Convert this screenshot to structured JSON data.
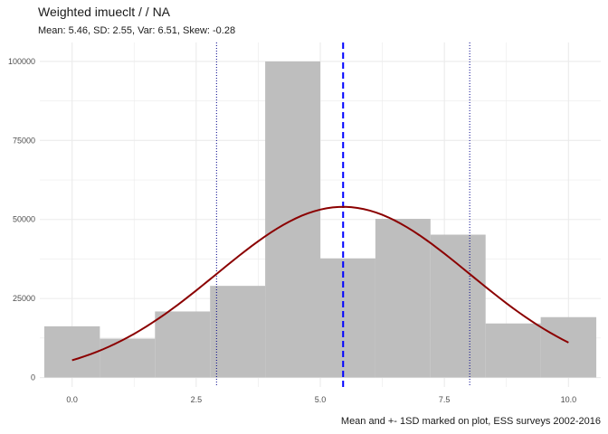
{
  "chart_data": {
    "type": "bar",
    "title": "Weighted  imueclt /  / NA",
    "subtitle": "Mean: 5.46, SD: 2.55, Var: 6.51, Skew: -0.28",
    "caption": "Mean and +- 1SD marked on plot, ESS surveys 2002-2016",
    "xlabel": "",
    "ylabel": "",
    "xlim": [
      -0.65,
      10.65
    ],
    "ylim": [
      -3000,
      106000
    ],
    "x_ticks": [
      0,
      2.5,
      5,
      7.5,
      10
    ],
    "x_tick_labels": [
      "0.0",
      "2.5",
      "5.0",
      "7.5",
      "10.0"
    ],
    "y_ticks": [
      0,
      25000,
      50000,
      75000,
      100000
    ],
    "y_tick_labels": [
      "0",
      "25000",
      "50000",
      "75000",
      "100000"
    ],
    "bins": [
      {
        "x0": -0.56,
        "x1": 0.56,
        "count": 16200
      },
      {
        "x0": 0.56,
        "x1": 1.67,
        "count": 12300
      },
      {
        "x0": 1.67,
        "x1": 2.78,
        "count": 20900
      },
      {
        "x0": 2.78,
        "x1": 3.89,
        "count": 29000
      },
      {
        "x0": 3.89,
        "x1": 5.0,
        "count": 100000
      },
      {
        "x0": 5.0,
        "x1": 6.11,
        "count": 37700
      },
      {
        "x0": 6.11,
        "x1": 7.22,
        "count": 50200
      },
      {
        "x0": 7.22,
        "x1": 8.33,
        "count": 45200
      },
      {
        "x0": 8.33,
        "x1": 9.44,
        "count": 17100
      },
      {
        "x0": 9.44,
        "x1": 10.56,
        "count": 19100
      }
    ],
    "density_curve": {
      "mean": 5.46,
      "sd": 2.55,
      "peak": 54000,
      "x_range": [
        0,
        10
      ]
    },
    "mean_line": 5.46,
    "sd_lines": [
      2.91,
      8.01
    ],
    "grid": true,
    "colors": {
      "bar": "#bebebe",
      "curve": "#8b0000",
      "mean_line": "#0000ff",
      "sd_lines": "#00008b",
      "grid": "#ebebeb",
      "text": "#1a1a1a",
      "tick_text": "#4d4d4d"
    }
  }
}
